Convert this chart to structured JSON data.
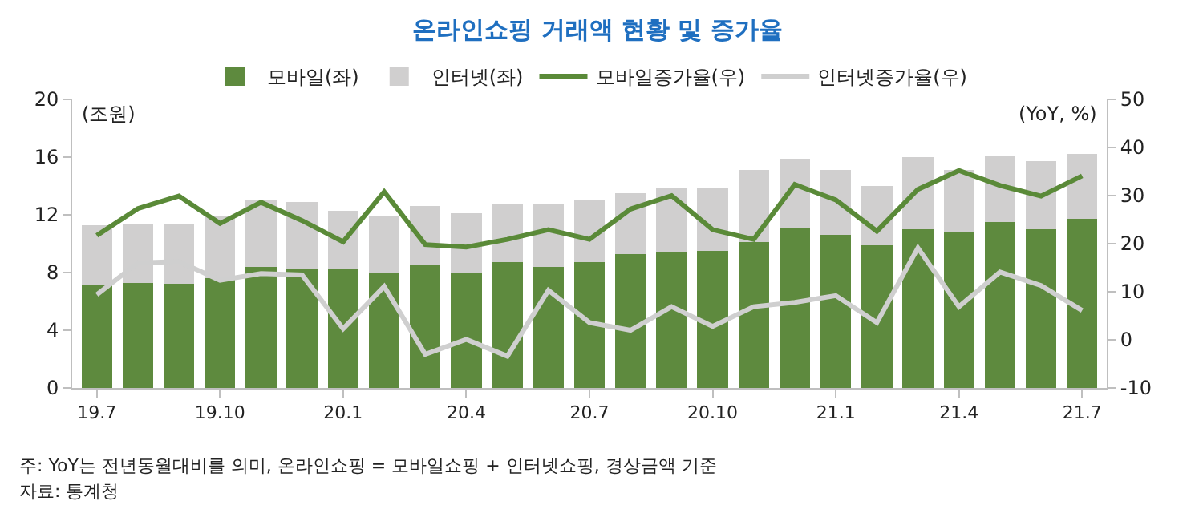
{
  "chart_data": {
    "type": "bar",
    "title": "온라인쇼핑 거래액 현황 및 증가율",
    "ylabel": "(조원)",
    "y2label": "(YoY, %)",
    "categories": [
      "19.7",
      null,
      null,
      "19.10",
      null,
      null,
      "20.1",
      null,
      null,
      "20.4",
      null,
      null,
      "20.7",
      null,
      null,
      "20.10",
      null,
      null,
      "21.1",
      null,
      null,
      "21.4",
      null,
      null,
      "21.7"
    ],
    "stacked": true,
    "series": [
      {
        "name": "모바일(좌)",
        "color": "#5e8a3e",
        "values": [
          7.1,
          7.3,
          7.2,
          7.6,
          8.4,
          8.3,
          8.2,
          8.0,
          8.5,
          8.0,
          8.7,
          8.4,
          8.7,
          9.3,
          9.4,
          9.5,
          10.1,
          11.1,
          10.6,
          9.9,
          11.0,
          10.8,
          11.5,
          11.0,
          11.7
        ]
      },
      {
        "name": "인터넷(좌)",
        "color": "#d0cfcf",
        "values": [
          4.2,
          4.1,
          4.2,
          4.3,
          4.6,
          4.6,
          4.1,
          3.9,
          4.1,
          4.1,
          4.1,
          4.3,
          4.3,
          4.2,
          4.5,
          4.4,
          5.0,
          4.8,
          4.5,
          4.1,
          5.0,
          4.3,
          4.6,
          4.7,
          4.5
        ]
      },
      {
        "name": "모바일증가율(우)",
        "type": "line",
        "axis": "y2",
        "color": "#5a8a38",
        "values": [
          21.7,
          27.3,
          29.9,
          24.2,
          28.6,
          24.8,
          20.4,
          30.8,
          19.8,
          19.3,
          20.9,
          22.9,
          20.9,
          27.2,
          30.0,
          22.9,
          20.9,
          32.3,
          29.1,
          22.6,
          31.3,
          35.2,
          32.1,
          29.9,
          34.1
        ]
      },
      {
        "name": "인터넷증가율(우)",
        "type": "line",
        "axis": "y2",
        "color": "#cfcfcf",
        "values": [
          9.4,
          16.0,
          16.3,
          12.4,
          13.8,
          13.5,
          2.3,
          11.1,
          -3.0,
          0.1,
          -3.4,
          10.3,
          3.6,
          2.0,
          6.9,
          2.8,
          6.9,
          7.8,
          9.2,
          3.6,
          19.1,
          6.9,
          14.1,
          11.3,
          6.1
        ]
      }
    ],
    "ylim": [
      0,
      20
    ],
    "yticks": [
      0,
      4,
      8,
      12,
      16,
      20
    ],
    "y2lim": [
      -10,
      50
    ],
    "y2ticks": [
      -10,
      0,
      10,
      20,
      30,
      40,
      50
    ],
    "legend": "top",
    "marker": "none",
    "line_style": "solid",
    "annotations": [
      "주: YoY는 전년동월대비를 의미, 온라인쇼핑 = 모바일쇼핑 + 인터넷쇼핑, 경상금액 기준",
      "자료: 통계청"
    ]
  }
}
